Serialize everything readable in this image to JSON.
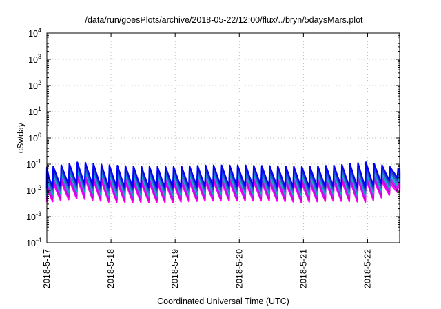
{
  "chart_data": {
    "type": "line",
    "title": "/data/run/goesPlots/archive/2018-05-22/12:00/flux/../bryn/5daysMars.plot",
    "xlabel": "Coordinated Universal Time (UTC)",
    "ylabel": "cSv/day",
    "x_tick_labels": [
      "2018-5-17",
      "2018-5-18",
      "2018-5-19",
      "2018-5-20",
      "2018-5-21",
      "2018-5-22"
    ],
    "x_range": [
      "2018-05-17T00:00",
      "2018-05-22T12:00"
    ],
    "y_scale": "log",
    "y_ticks": [
      {
        "base": "10",
        "exp": "-4",
        "value": 0.0001
      },
      {
        "base": "10",
        "exp": "-3",
        "value": 0.001
      },
      {
        "base": "10",
        "exp": "-2",
        "value": 0.01
      },
      {
        "base": "10",
        "exp": "-1",
        "value": 0.1
      },
      {
        "base": "10",
        "exp": "0",
        "value": 1
      },
      {
        "base": "10",
        "exp": "1",
        "value": 10
      },
      {
        "base": "10",
        "exp": "2",
        "value": 100
      },
      {
        "base": "10",
        "exp": "3",
        "value": 1000
      },
      {
        "base": "10",
        "exp": "4",
        "value": 10000
      }
    ],
    "ylim": [
      0.0001,
      10000
    ],
    "grid": true,
    "legend": "none",
    "series_colors": [
      "#ff00ff",
      "#cc00cc",
      "#9933ff",
      "#00bbbb",
      "#3366dd",
      "#2244bb",
      "#0000ff"
    ],
    "cycle_hours": 3,
    "envelope_samples": [
      {
        "x": "2018-05-17T00:00",
        "peak": 0.075,
        "trough": 0.0035
      },
      {
        "x": "2018-05-17T12:00",
        "peak": 0.12,
        "trough": 0.005
      },
      {
        "x": "2018-05-18T00:00",
        "peak": 0.09,
        "trough": 0.0035
      },
      {
        "x": "2018-05-18T12:00",
        "peak": 0.08,
        "trough": 0.0035
      },
      {
        "x": "2018-05-19T00:00",
        "peak": 0.08,
        "trough": 0.0035
      },
      {
        "x": "2018-05-19T12:00",
        "peak": 0.09,
        "trough": 0.004
      },
      {
        "x": "2018-05-20T00:00",
        "peak": 0.09,
        "trough": 0.004
      },
      {
        "x": "2018-05-20T12:00",
        "peak": 0.085,
        "trough": 0.004
      },
      {
        "x": "2018-05-21T00:00",
        "peak": 0.08,
        "trough": 0.0035
      },
      {
        "x": "2018-05-21T12:00",
        "peak": 0.09,
        "trough": 0.004
      },
      {
        "x": "2018-05-22T00:00",
        "peak": 0.12,
        "trough": 0.0035
      },
      {
        "x": "2018-05-22T12:00",
        "peak": 0.065,
        "trough": 0.009
      }
    ]
  }
}
